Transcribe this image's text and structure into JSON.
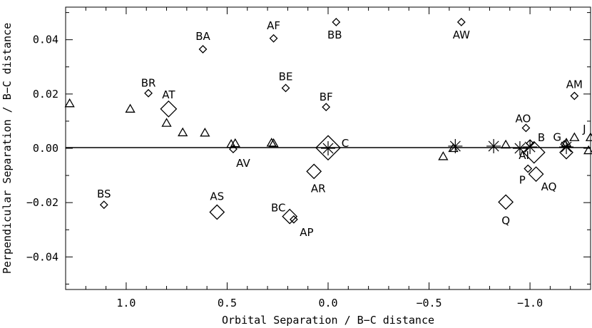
{
  "chart_data": {
    "type": "scatter",
    "title": "",
    "xlabel": "Orbital Separation / B−C distance",
    "ylabel": "Perpendicular Separation / B−C distance",
    "xlim": [
      1.3,
      -1.3
    ],
    "ylim": [
      -0.052,
      0.052
    ],
    "x_reversed": true,
    "grid": false,
    "zero_line": true,
    "x_ticks": [
      {
        "value": 1.0,
        "label": "1.0"
      },
      {
        "value": 0.5,
        "label": "0.5"
      },
      {
        "value": 0.0,
        "label": "0.0"
      },
      {
        "value": -0.5,
        "label": "−0.5"
      },
      {
        "value": -1.0,
        "label": "−1.0"
      }
    ],
    "y_ticks": [
      {
        "value": 0.04,
        "label": "0.04"
      },
      {
        "value": 0.02,
        "label": "0.02"
      },
      {
        "value": 0.0,
        "label": "0.00"
      },
      {
        "value": -0.02,
        "label": "−0.02"
      },
      {
        "value": -0.04,
        "label": "−0.04"
      }
    ],
    "series": [
      {
        "marker": "diamond",
        "points": [
          {
            "label": "BA",
            "x": 0.62,
            "y": 0.0365
          },
          {
            "label": "AF",
            "x": 0.27,
            "y": 0.0405
          },
          {
            "label": "BB",
            "x": -0.04,
            "y": 0.0465
          },
          {
            "label": "AW",
            "x": -0.66,
            "y": 0.0465
          },
          {
            "label": "BR",
            "x": 0.89,
            "y": 0.0203
          },
          {
            "label": "BE",
            "x": 0.21,
            "y": 0.0222
          },
          {
            "label": "BF",
            "x": 0.01,
            "y": 0.0152
          },
          {
            "label": "AM",
            "x": -1.22,
            "y": 0.0193
          },
          {
            "label": "AT",
            "x": 0.79,
            "y": 0.0145,
            "size": 11
          },
          {
            "label": "AO",
            "x": -0.98,
            "y": 0.0075
          },
          {
            "label": "C",
            "x": 0.0,
            "y": 0.0002,
            "size": 17
          },
          {
            "label": "AV",
            "x": 0.47,
            "y": -0.0003
          },
          {
            "label": "B",
            "x": -1.0,
            "y": 0.0018
          },
          {
            "label": "",
            "x": -1.02,
            "y": -0.0015,
            "size": 15
          },
          {
            "label": "G",
            "x": -1.17,
            "y": 0.0015
          },
          {
            "label": "",
            "x": -1.18,
            "y": -0.0015,
            "size": 9
          },
          {
            "label": "AR",
            "x": 0.07,
            "y": -0.0085,
            "size": 10
          },
          {
            "label": "AQ",
            "x": -1.03,
            "y": -0.0095,
            "size": 10
          },
          {
            "label": "P",
            "x": -0.99,
            "y": -0.0075
          },
          {
            "label": "BS",
            "x": 1.11,
            "y": -0.0208
          },
          {
            "label": "AS",
            "x": 0.55,
            "y": -0.0235,
            "size": 10
          },
          {
            "label": "Q",
            "x": -0.88,
            "y": -0.0198,
            "size": 10
          },
          {
            "label": "BC",
            "x": 0.19,
            "y": -0.0251,
            "size": 10
          },
          {
            "label": "AP",
            "x": 0.17,
            "y": -0.0262
          }
        ]
      },
      {
        "marker": "triangle",
        "points": [
          {
            "x": 1.28,
            "y": 0.0165
          },
          {
            "x": 0.98,
            "y": 0.0145
          },
          {
            "x": 0.8,
            "y": 0.0093
          },
          {
            "x": 0.72,
            "y": 0.0058
          },
          {
            "x": 0.61,
            "y": 0.0057
          },
          {
            "x": 0.48,
            "y": 0.0015
          },
          {
            "x": 0.46,
            "y": 0.0018
          },
          {
            "x": 0.28,
            "y": 0.002
          },
          {
            "x": 0.27,
            "y": 0.0018
          },
          {
            "x": -0.57,
            "y": -0.003
          },
          {
            "x": -0.62,
            "y": 0.0
          },
          {
            "x": -0.88,
            "y": 0.0013
          },
          {
            "x": -1.18,
            "y": 0.002
          },
          {
            "x": -1.22,
            "y": 0.004
          },
          {
            "x": -1.3,
            "y": 0.004
          },
          {
            "x": -1.29,
            "y": -0.0008
          }
        ]
      },
      {
        "marker": "asterisk",
        "points": [
          {
            "x": 0.0,
            "y": 0.0
          },
          {
            "x": -0.63,
            "y": 0.0008
          },
          {
            "x": -0.82,
            "y": 0.0008
          },
          {
            "x": -0.95,
            "y": 0.0
          },
          {
            "x": -1.0,
            "y": 0.0005
          },
          {
            "x": -1.18,
            "y": 0.0005
          }
        ]
      }
    ],
    "annotations": [
      {
        "text": "C",
        "x": 0.0,
        "y": 0.0
      },
      {
        "text": "B",
        "x": -1.0,
        "y": 0.0018
      },
      {
        "text": "G",
        "x": -1.17,
        "y": 0.0015
      },
      {
        "text": "J",
        "x": -1.22,
        "y": 0.004
      },
      {
        "text": "AI",
        "x": -0.97,
        "y": 0.0
      }
    ]
  }
}
